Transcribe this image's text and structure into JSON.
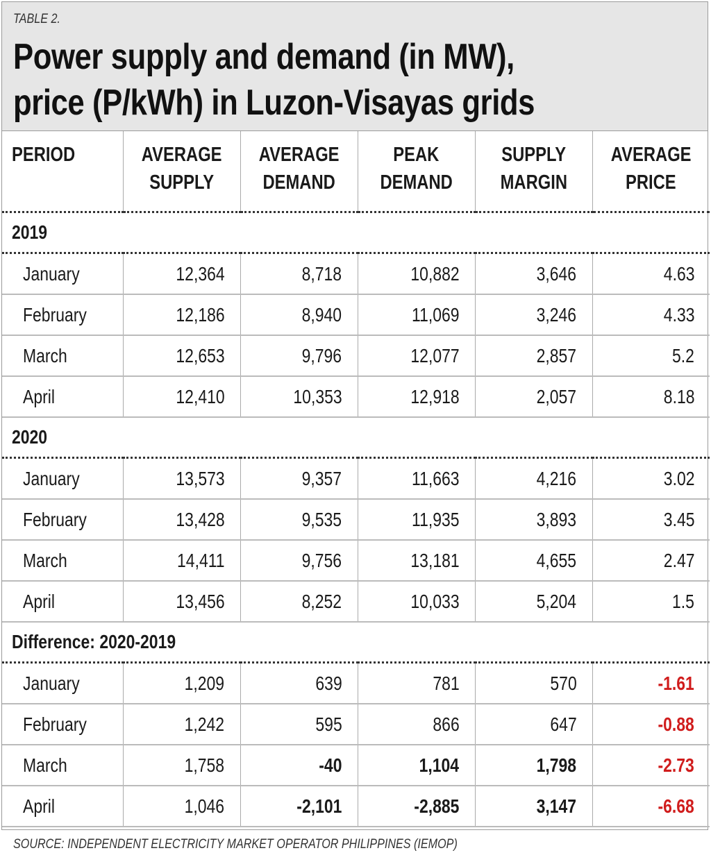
{
  "label": "TABLE 2.",
  "title_line1": "Power supply and demand (in MW),",
  "title_line2": "price (P/kWh) in Luzon-Visayas grids",
  "columns": [
    [
      "PERIOD",
      ""
    ],
    [
      "AVERAGE",
      "SUPPLY"
    ],
    [
      "AVERAGE",
      "DEMAND"
    ],
    [
      "PEAK",
      "DEMAND"
    ],
    [
      "SUPPLY",
      "MARGIN"
    ],
    [
      "AVERAGE",
      "PRICE"
    ]
  ],
  "sections": [
    {
      "title": "2019",
      "rows": [
        {
          "period": "January",
          "cells": [
            {
              "v": "12,364"
            },
            {
              "v": "8,718"
            },
            {
              "v": "10,882"
            },
            {
              "v": "3,646"
            },
            {
              "v": "4.63"
            }
          ]
        },
        {
          "period": "February",
          "cells": [
            {
              "v": "12,186"
            },
            {
              "v": "8,940"
            },
            {
              "v": "11,069"
            },
            {
              "v": "3,246"
            },
            {
              "v": "4.33"
            }
          ]
        },
        {
          "period": "March",
          "cells": [
            {
              "v": "12,653"
            },
            {
              "v": "9,796"
            },
            {
              "v": "12,077"
            },
            {
              "v": "2,857"
            },
            {
              "v": "5.2"
            }
          ]
        },
        {
          "period": "April",
          "cells": [
            {
              "v": "12,410"
            },
            {
              "v": "10,353"
            },
            {
              "v": "12,918"
            },
            {
              "v": "2,057"
            },
            {
              "v": "8.18"
            }
          ]
        }
      ]
    },
    {
      "title": "2020",
      "rows": [
        {
          "period": "January",
          "cells": [
            {
              "v": "13,573"
            },
            {
              "v": "9,357"
            },
            {
              "v": "11,663"
            },
            {
              "v": "4,216"
            },
            {
              "v": "3.02"
            }
          ]
        },
        {
          "period": "February",
          "cells": [
            {
              "v": "13,428"
            },
            {
              "v": "9,535"
            },
            {
              "v": "11,935"
            },
            {
              "v": "3,893"
            },
            {
              "v": "3.45"
            }
          ]
        },
        {
          "period": "March",
          "cells": [
            {
              "v": "14,411"
            },
            {
              "v": "9,756"
            },
            {
              "v": "13,181"
            },
            {
              "v": "4,655"
            },
            {
              "v": "2.47"
            }
          ]
        },
        {
          "period": "April",
          "cells": [
            {
              "v": "13,456"
            },
            {
              "v": "8,252"
            },
            {
              "v": "10,033"
            },
            {
              "v": "5,204"
            },
            {
              "v": "1.5"
            }
          ]
        }
      ]
    },
    {
      "title": "Difference: 2020-2019",
      "rows": [
        {
          "period": "January",
          "cells": [
            {
              "v": "1,209"
            },
            {
              "v": "639"
            },
            {
              "v": "781"
            },
            {
              "v": "570"
            },
            {
              "v": "-1.61",
              "style": "neg"
            }
          ]
        },
        {
          "period": "February",
          "cells": [
            {
              "v": "1,242"
            },
            {
              "v": "595"
            },
            {
              "v": "866"
            },
            {
              "v": "647"
            },
            {
              "v": "-0.88",
              "style": "neg"
            }
          ]
        },
        {
          "period": "March",
          "cells": [
            {
              "v": "1,758"
            },
            {
              "v": "-40",
              "style": "b"
            },
            {
              "v": "1,104",
              "style": "b"
            },
            {
              "v": "1,798",
              "style": "b"
            },
            {
              "v": "-2.73",
              "style": "neg"
            }
          ]
        },
        {
          "period": "April",
          "cells": [
            {
              "v": "1,046"
            },
            {
              "v": "-2,101",
              "style": "b"
            },
            {
              "v": "-2,885",
              "style": "b"
            },
            {
              "v": "3,147",
              "style": "b"
            },
            {
              "v": "-6.68",
              "style": "neg"
            }
          ]
        }
      ]
    }
  ],
  "source": "SOURCE: INDEPENDENT ELECTRICITY MARKET OPERATOR PHILIPPINES (IEMOP)",
  "colors": {
    "negative": "#d01c1c",
    "header_bg": "#e6e6e6"
  }
}
